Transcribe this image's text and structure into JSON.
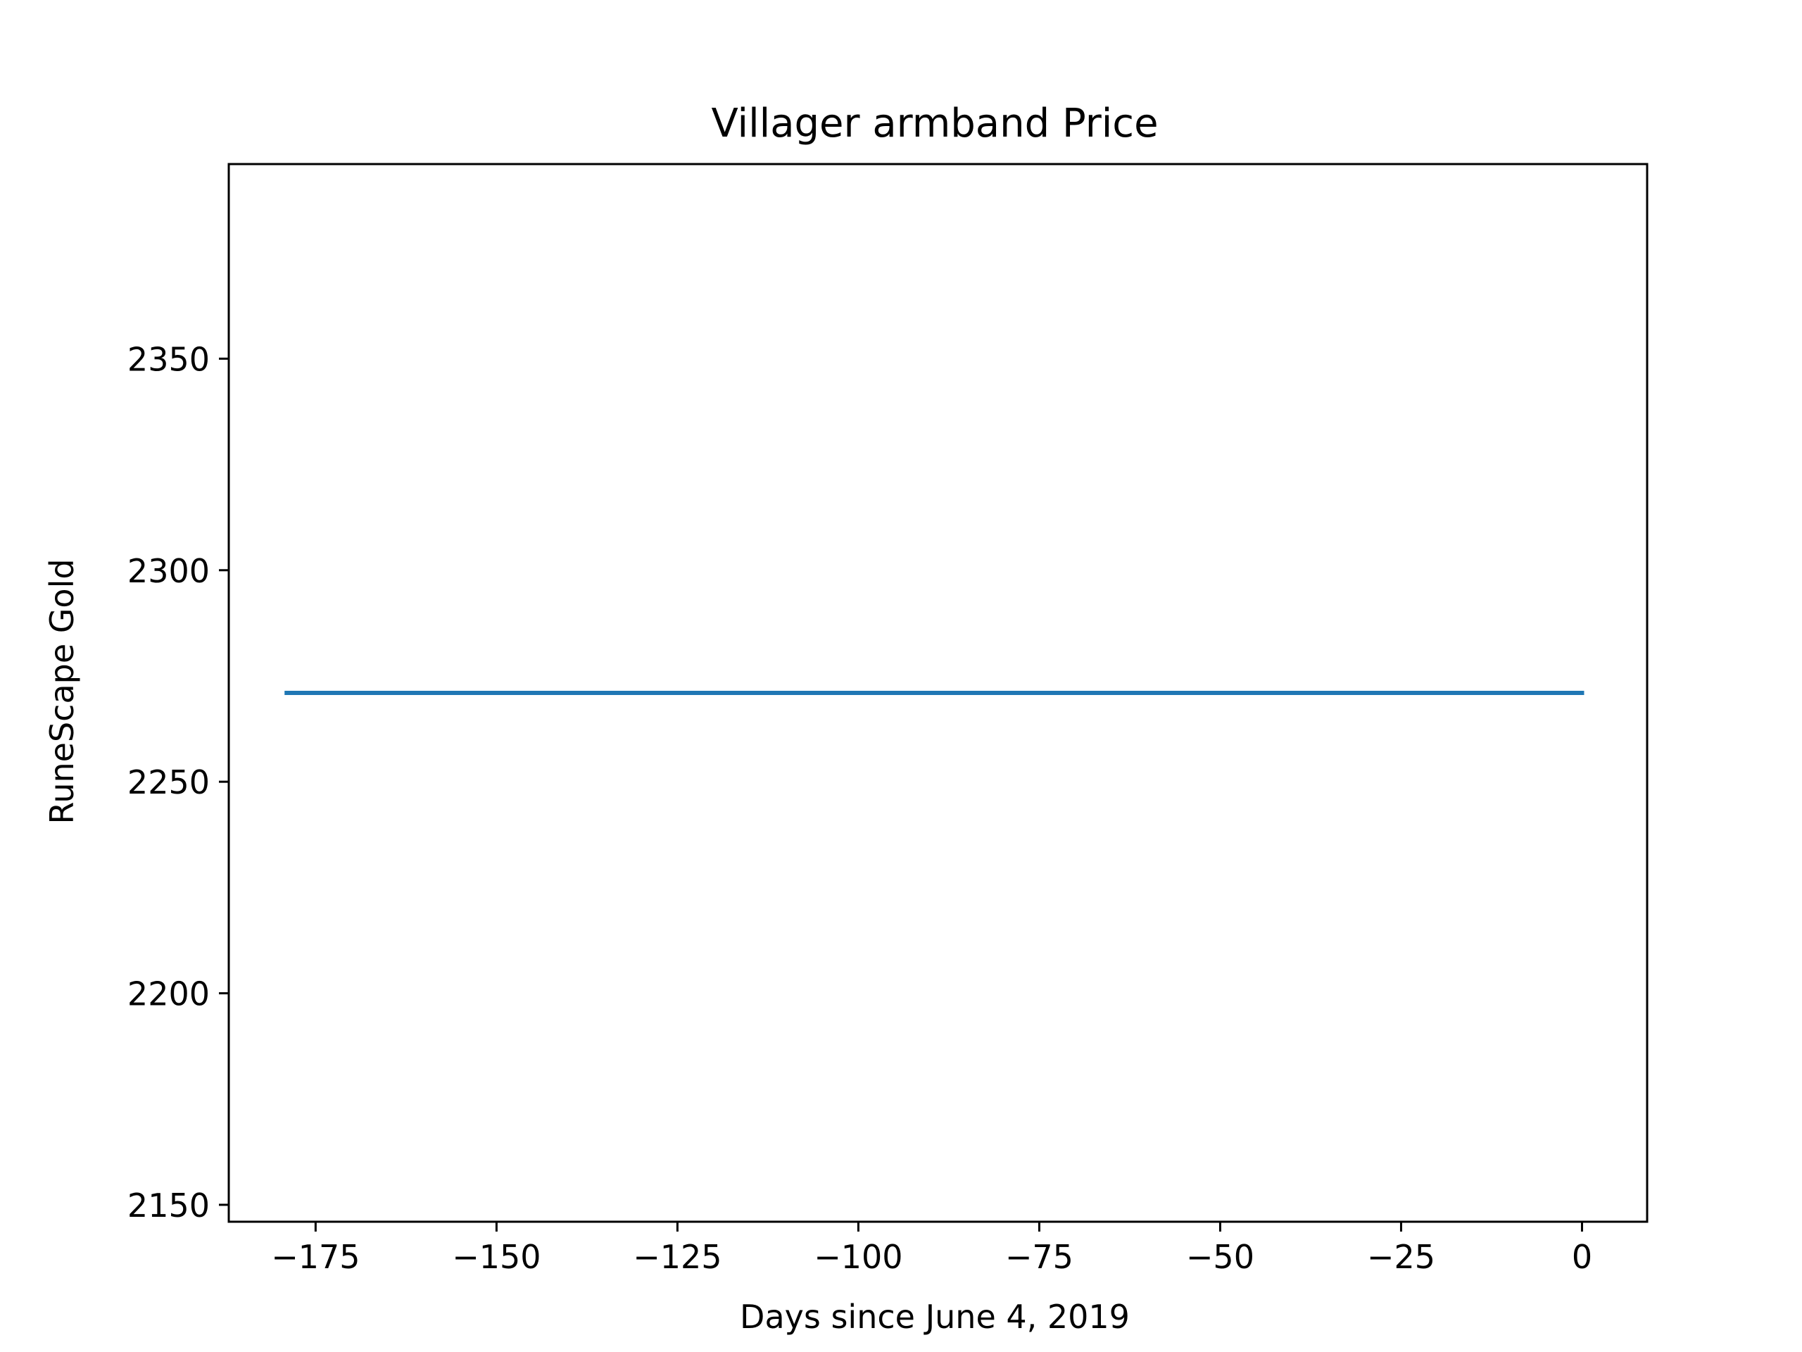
{
  "chart_data": {
    "type": "line",
    "title": "Villager armband Price",
    "xlabel": "Days since June 4, 2019",
    "ylabel": "RuneScape Gold",
    "xlim": [
      -187,
      9
    ],
    "ylim": [
      2146,
      2396
    ],
    "xticks": [
      {
        "value": -175,
        "label": "−175"
      },
      {
        "value": -150,
        "label": "−150"
      },
      {
        "value": -125,
        "label": "−125"
      },
      {
        "value": -100,
        "label": "−100"
      },
      {
        "value": -75,
        "label": "−75"
      },
      {
        "value": -50,
        "label": "−50"
      },
      {
        "value": -25,
        "label": "−25"
      },
      {
        "value": 0,
        "label": "0"
      }
    ],
    "yticks": [
      {
        "value": 2150,
        "label": "2150"
      },
      {
        "value": 2200,
        "label": "2200"
      },
      {
        "value": 2250,
        "label": "2250"
      },
      {
        "value": 2300,
        "label": "2300"
      },
      {
        "value": 2350,
        "label": "2350"
      }
    ],
    "grid": false,
    "series": [
      {
        "color": "#1f77b4",
        "x": [
          -179,
          0
        ],
        "y": [
          2271,
          2271
        ]
      }
    ]
  }
}
